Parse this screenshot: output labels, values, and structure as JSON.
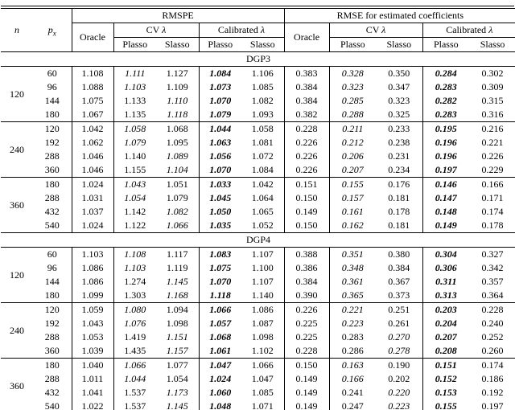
{
  "header": {
    "n_label": "n",
    "px_base": "p",
    "px_sub": "x",
    "rmspe": "RMSPE",
    "rmse": "RMSE for estimated coefficients",
    "oracle": "Oracle",
    "cv_label": "CV",
    "calibrated_label": "Calibrated",
    "lambda": "λ",
    "plasso": "Plasso",
    "slasso": "Slasso"
  },
  "value_columns": [
    "RMSPE Oracle",
    "RMSPE CV Plasso",
    "RMSPE CV Slasso",
    "RMSPE Calibrated Plasso",
    "RMSPE Calibrated Slasso",
    "RMSE Oracle",
    "RMSE CV Plasso",
    "RMSE CV Slasso",
    "RMSE Calibrated Plasso",
    "RMSE Calibrated Slasso"
  ],
  "style_legend": {
    "p": "plain",
    "i": "italic",
    "b": "bold-italic"
  },
  "sections": [
    {
      "label": "DGP3",
      "groups": [
        {
          "n": "120",
          "rows": [
            {
              "px": "60",
              "values": [
                "1.108",
                "1.111",
                "1.127",
                "1.084",
                "1.106",
                "0.383",
                "0.328",
                "0.350",
                "0.284",
                "0.302"
              ],
              "styles": [
                "p",
                "i",
                "p",
                "b",
                "p",
                "p",
                "i",
                "p",
                "b",
                "p"
              ]
            },
            {
              "px": "96",
              "values": [
                "1.088",
                "1.103",
                "1.109",
                "1.073",
                "1.085",
                "0.384",
                "0.323",
                "0.347",
                "0.283",
                "0.309"
              ],
              "styles": [
                "p",
                "i",
                "p",
                "b",
                "p",
                "p",
                "i",
                "p",
                "b",
                "p"
              ]
            },
            {
              "px": "144",
              "values": [
                "1.075",
                "1.133",
                "1.110",
                "1.070",
                "1.082",
                "0.384",
                "0.285",
                "0.323",
                "0.282",
                "0.315"
              ],
              "styles": [
                "p",
                "p",
                "i",
                "b",
                "p",
                "p",
                "i",
                "p",
                "b",
                "p"
              ]
            },
            {
              "px": "180",
              "values": [
                "1.067",
                "1.135",
                "1.118",
                "1.079",
                "1.093",
                "0.382",
                "0.288",
                "0.325",
                "0.283",
                "0.316"
              ],
              "styles": [
                "p",
                "p",
                "i",
                "b",
                "p",
                "p",
                "i",
                "p",
                "b",
                "p"
              ]
            }
          ]
        },
        {
          "n": "240",
          "rows": [
            {
              "px": "120",
              "values": [
                "1.042",
                "1.058",
                "1.068",
                "1.044",
                "1.058",
                "0.228",
                "0.211",
                "0.233",
                "0.195",
                "0.216"
              ],
              "styles": [
                "p",
                "i",
                "p",
                "b",
                "p",
                "p",
                "i",
                "p",
                "b",
                "p"
              ]
            },
            {
              "px": "192",
              "values": [
                "1.062",
                "1.079",
                "1.095",
                "1.063",
                "1.081",
                "0.226",
                "0.212",
                "0.238",
                "0.196",
                "0.221"
              ],
              "styles": [
                "p",
                "i",
                "p",
                "b",
                "p",
                "p",
                "i",
                "p",
                "b",
                "p"
              ]
            },
            {
              "px": "288",
              "values": [
                "1.046",
                "1.140",
                "1.089",
                "1.056",
                "1.072",
                "0.226",
                "0.206",
                "0.231",
                "0.196",
                "0.226"
              ],
              "styles": [
                "p",
                "p",
                "i",
                "b",
                "p",
                "p",
                "i",
                "p",
                "b",
                "p"
              ]
            },
            {
              "px": "360",
              "values": [
                "1.046",
                "1.155",
                "1.104",
                "1.070",
                "1.084",
                "0.226",
                "0.207",
                "0.234",
                "0.197",
                "0.229"
              ],
              "styles": [
                "p",
                "p",
                "i",
                "b",
                "p",
                "p",
                "i",
                "p",
                "b",
                "p"
              ]
            }
          ]
        },
        {
          "n": "360",
          "rows": [
            {
              "px": "180",
              "values": [
                "1.024",
                "1.043",
                "1.051",
                "1.033",
                "1.042",
                "0.151",
                "0.155",
                "0.176",
                "0.146",
                "0.166"
              ],
              "styles": [
                "p",
                "i",
                "p",
                "b",
                "p",
                "p",
                "i",
                "p",
                "b",
                "p"
              ]
            },
            {
              "px": "288",
              "values": [
                "1.031",
                "1.054",
                "1.079",
                "1.045",
                "1.064",
                "0.150",
                "0.157",
                "0.181",
                "0.147",
                "0.171"
              ],
              "styles": [
                "p",
                "i",
                "p",
                "b",
                "p",
                "p",
                "i",
                "p",
                "b",
                "p"
              ]
            },
            {
              "px": "432",
              "values": [
                "1.037",
                "1.142",
                "1.082",
                "1.050",
                "1.065",
                "0.149",
                "0.161",
                "0.178",
                "0.148",
                "0.174"
              ],
              "styles": [
                "p",
                "p",
                "i",
                "b",
                "p",
                "p",
                "i",
                "p",
                "b",
                "p"
              ]
            },
            {
              "px": "540",
              "values": [
                "1.024",
                "1.122",
                "1.066",
                "1.035",
                "1.052",
                "0.150",
                "0.162",
                "0.181",
                "0.149",
                "0.178"
              ],
              "styles": [
                "p",
                "p",
                "i",
                "b",
                "p",
                "p",
                "i",
                "p",
                "b",
                "p"
              ]
            }
          ]
        }
      ]
    },
    {
      "label": "DGP4",
      "groups": [
        {
          "n": "120",
          "rows": [
            {
              "px": "60",
              "values": [
                "1.103",
                "1.108",
                "1.117",
                "1.083",
                "1.107",
                "0.388",
                "0.351",
                "0.380",
                "0.304",
                "0.327"
              ],
              "styles": [
                "p",
                "i",
                "p",
                "b",
                "p",
                "p",
                "i",
                "p",
                "b",
                "p"
              ]
            },
            {
              "px": "96",
              "values": [
                "1.086",
                "1.103",
                "1.119",
                "1.075",
                "1.100",
                "0.386",
                "0.348",
                "0.384",
                "0.306",
                "0.342"
              ],
              "styles": [
                "p",
                "i",
                "p",
                "b",
                "p",
                "p",
                "i",
                "p",
                "b",
                "p"
              ]
            },
            {
              "px": "144",
              "values": [
                "1.086",
                "1.274",
                "1.145",
                "1.070",
                "1.107",
                "0.384",
                "0.361",
                "0.367",
                "0.311",
                "0.357"
              ],
              "styles": [
                "p",
                "p",
                "i",
                "b",
                "p",
                "p",
                "i",
                "p",
                "b",
                "p"
              ]
            },
            {
              "px": "180",
              "values": [
                "1.099",
                "1.303",
                "1.168",
                "1.118",
                "1.140",
                "0.390",
                "0.365",
                "0.373",
                "0.313",
                "0.364"
              ],
              "styles": [
                "p",
                "p",
                "i",
                "b",
                "p",
                "p",
                "i",
                "p",
                "b",
                "p"
              ]
            }
          ]
        },
        {
          "n": "240",
          "rows": [
            {
              "px": "120",
              "values": [
                "1.059",
                "1.080",
                "1.094",
                "1.066",
                "1.086",
                "0.226",
                "0.221",
                "0.251",
                "0.203",
                "0.228"
              ],
              "styles": [
                "p",
                "i",
                "p",
                "b",
                "p",
                "p",
                "i",
                "p",
                "b",
                "p"
              ]
            },
            {
              "px": "192",
              "values": [
                "1.043",
                "1.076",
                "1.098",
                "1.057",
                "1.087",
                "0.225",
                "0.223",
                "0.261",
                "0.204",
                "0.240"
              ],
              "styles": [
                "p",
                "i",
                "p",
                "b",
                "p",
                "p",
                "i",
                "p",
                "b",
                "p"
              ]
            },
            {
              "px": "288",
              "values": [
                "1.053",
                "1.419",
                "1.151",
                "1.068",
                "1.098",
                "0.225",
                "0.283",
                "0.270",
                "0.207",
                "0.252"
              ],
              "styles": [
                "p",
                "p",
                "i",
                "b",
                "p",
                "p",
                "p",
                "i",
                "b",
                "p"
              ]
            },
            {
              "px": "360",
              "values": [
                "1.039",
                "1.435",
                "1.157",
                "1.061",
                "1.102",
                "0.228",
                "0.286",
                "0.278",
                "0.208",
                "0.260"
              ],
              "styles": [
                "p",
                "p",
                "i",
                "b",
                "p",
                "p",
                "p",
                "i",
                "b",
                "p"
              ]
            }
          ]
        },
        {
          "n": "360",
          "rows": [
            {
              "px": "180",
              "values": [
                "1.040",
                "1.066",
                "1.077",
                "1.047",
                "1.066",
                "0.150",
                "0.163",
                "0.190",
                "0.151",
                "0.174"
              ],
              "styles": [
                "p",
                "i",
                "p",
                "b",
                "p",
                "p",
                "i",
                "p",
                "b",
                "p"
              ]
            },
            {
              "px": "288",
              "values": [
                "1.011",
                "1.044",
                "1.054",
                "1.024",
                "1.047",
                "0.149",
                "0.166",
                "0.202",
                "0.152",
                "0.186"
              ],
              "styles": [
                "p",
                "i",
                "p",
                "b",
                "p",
                "p",
                "i",
                "p",
                "b",
                "p"
              ]
            },
            {
              "px": "432",
              "values": [
                "1.041",
                "1.537",
                "1.173",
                "1.060",
                "1.085",
                "0.149",
                "0.241",
                "0.220",
                "0.153",
                "0.192"
              ],
              "styles": [
                "p",
                "p",
                "i",
                "b",
                "p",
                "p",
                "p",
                "i",
                "b",
                "p"
              ]
            },
            {
              "px": "540",
              "values": [
                "1.022",
                "1.537",
                "1.145",
                "1.048",
                "1.071",
                "0.149",
                "0.247",
                "0.223",
                "0.155",
                "0.197"
              ],
              "styles": [
                "p",
                "p",
                "i",
                "b",
                "p",
                "p",
                "p",
                "i",
                "b",
                "p"
              ]
            }
          ]
        }
      ]
    }
  ]
}
